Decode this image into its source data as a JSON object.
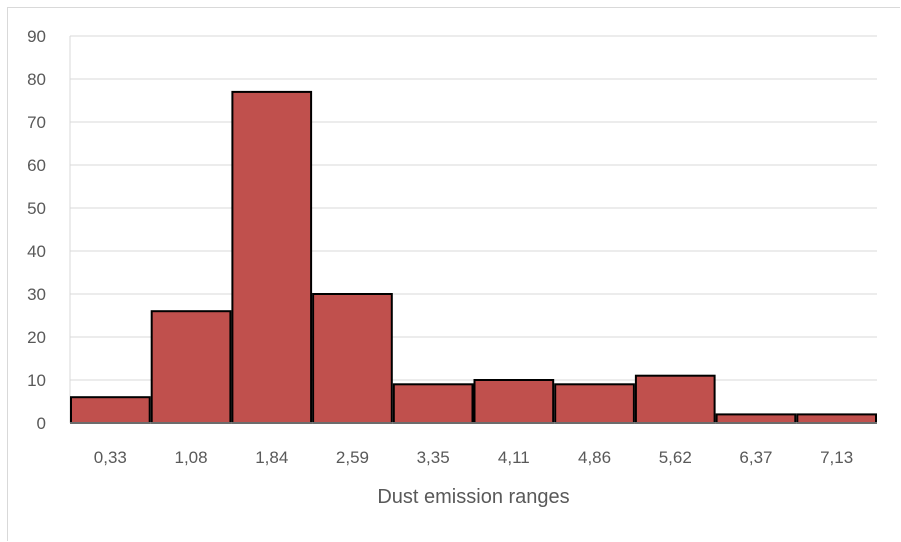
{
  "chart_data": {
    "type": "bar",
    "title": "",
    "xlabel": "Dust emission ranges",
    "ylabel": "",
    "categories": [
      "0,33",
      "1,08",
      "1,84",
      "2,59",
      "3,35",
      "4,11",
      "4,86",
      "5,62",
      "6,37",
      "7,13"
    ],
    "values": [
      6,
      26,
      77,
      30,
      9,
      10,
      9,
      11,
      2,
      2
    ],
    "ylim": [
      0,
      90
    ],
    "yticks": [
      "0",
      "10",
      "20",
      "30",
      "40",
      "50",
      "60",
      "70",
      "80",
      "90"
    ],
    "grid": true,
    "legend": "none",
    "colors": {
      "bar_fill": "#c0504d",
      "bar_stroke": "#000000",
      "grid": "#d9d9d9",
      "axis": "#595959",
      "text": "#595959"
    }
  }
}
